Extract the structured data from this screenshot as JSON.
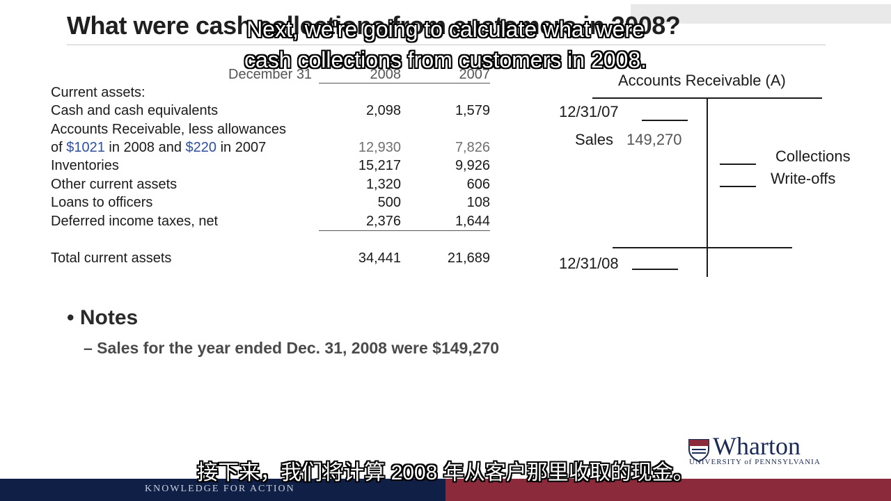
{
  "slide": {
    "title": "What were cash collections from customers in 2008?"
  },
  "balance_sheet": {
    "header": {
      "date_label": "December 31",
      "year_1": "2008",
      "year_2": "2007"
    },
    "section_label": "Current assets:",
    "rows": [
      {
        "label": "Cash and cash equivalents",
        "v2008": "2,098",
        "v2007": "1,579"
      },
      {
        "label_line1": "Accounts Receivable, less allowances",
        "label_line2_pre": "of ",
        "allow_2008": "$1021",
        "label_line2_mid": " in 2008 and ",
        "allow_2007": "$220",
        "label_line2_post": " in 2007",
        "v2008": "12,930",
        "v2007": "7,826"
      },
      {
        "label": "Inventories",
        "v2008": "15,217",
        "v2007": "9,926"
      },
      {
        "label": "Other current assets",
        "v2008": "1,320",
        "v2007": "606"
      },
      {
        "label": "Loans to officers",
        "v2008": "500",
        "v2007": "108"
      },
      {
        "label": "Deferred income taxes, net",
        "v2008": "2,376",
        "v2007": "1,644"
      }
    ],
    "total": {
      "label": "Total current assets",
      "v2008": "34,441",
      "v2007": "21,689"
    }
  },
  "t_account": {
    "title": "Accounts Receivable (A)",
    "opening_date": "12/31/07",
    "sales_label": "Sales",
    "sales_value": "149,270",
    "collections_label": "Collections",
    "writeoffs_label": "Write-offs",
    "closing_date": "12/31/08"
  },
  "notes": {
    "bullet": "Notes",
    "bullet_mark": "•",
    "item": "– Sales for the year ended Dec. 31, 2008 were $149,270"
  },
  "captions": {
    "en_line1": "Next, we're going to calculate what were",
    "en_line2": "cash collections from customers in 2008.",
    "zh": "接下来，我们将计算 2008 年从客户那里收取的现金。"
  },
  "footer": {
    "tagline": "KNOWLEDGE FOR ACTION"
  },
  "logo": {
    "name": "Wharton",
    "subtitle": "UNIVERSITY of PENNSYLVANIA"
  },
  "colors": {
    "footer_navy": "#0f1f45",
    "footer_maroon": "#8a2a3b",
    "allowance_blue": "#2f4f9f"
  }
}
